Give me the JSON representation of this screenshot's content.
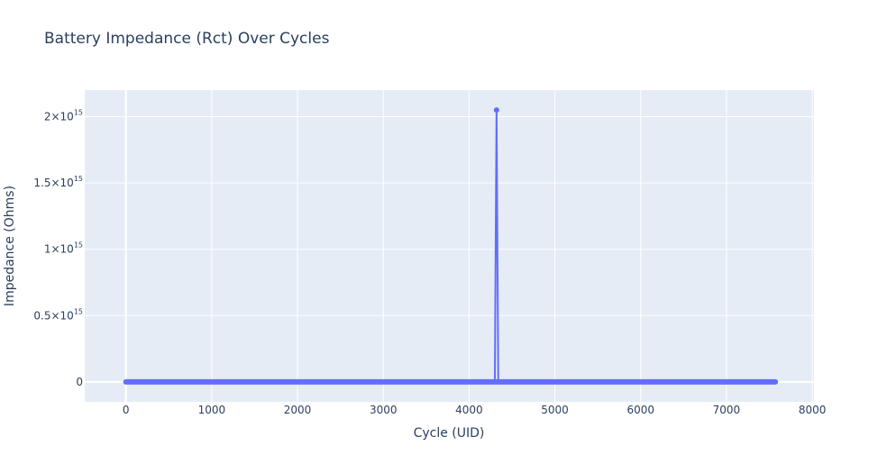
{
  "chart_data": {
    "type": "line",
    "title": "Battery Impedance (Rct) Over Cycles",
    "xlabel": "Cycle (UID)",
    "ylabel": "Impedance (Ohms)",
    "xlim": [
      -480,
      8020
    ],
    "ylim": [
      -150000000000000.0,
      2200000000000000.0
    ],
    "x_ticks": [
      0,
      1000,
      2000,
      3000,
      4000,
      5000,
      6000,
      7000,
      8000
    ],
    "x_tick_labels": [
      "0",
      "1000",
      "2000",
      "3000",
      "4000",
      "5000",
      "6000",
      "7000",
      "8000"
    ],
    "y_ticks": [
      {
        "value": 0,
        "mantissa": "0",
        "exp": ""
      },
      {
        "value": 500000000000000.0,
        "mantissa": "0.5×10",
        "exp": "15"
      },
      {
        "value": 1000000000000000.0,
        "mantissa": "1×10",
        "exp": "15"
      },
      {
        "value": 1500000000000000.0,
        "mantissa": "1.5×10",
        "exp": "15"
      },
      {
        "value": 2000000000000000.0,
        "mantissa": "2×10",
        "exp": "15"
      }
    ],
    "grid": true,
    "series": [
      {
        "color": "#636efa",
        "mode": "lines+markers",
        "baseline_range": [
          0,
          7570
        ],
        "baseline_value": 0,
        "spike": {
          "x": 4320,
          "y": 2050000000000000.0
        }
      }
    ]
  }
}
